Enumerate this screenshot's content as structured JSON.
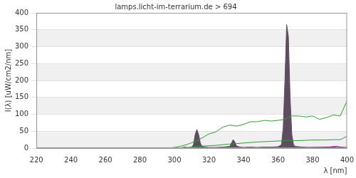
{
  "chart_data": {
    "type": "line",
    "title": "lamps.licht-im-terrarium.de > 694",
    "x_label": "λ [nm]",
    "y_label": "I(λ) [uW/cm2/nm]",
    "xlim": [
      220,
      400
    ],
    "xticks": [
      220,
      240,
      260,
      280,
      300,
      320,
      340,
      360,
      380,
      400
    ],
    "ylim": [
      0,
      400
    ],
    "yticks": [
      0,
      50,
      100,
      150,
      200,
      250,
      300,
      350,
      400
    ],
    "grid": true,
    "series": [
      {
        "type": "area",
        "color": "#5e4d60",
        "x": [
          296,
          300,
          304,
          306,
          308,
          310,
          311,
          312,
          313,
          314,
          315,
          316,
          318,
          320,
          324,
          328,
          332,
          333,
          334,
          335,
          336,
          338,
          340,
          344,
          348,
          352,
          356,
          360,
          362,
          363,
          364,
          365,
          366,
          367,
          368,
          369,
          370,
          374,
          378,
          382,
          386,
          390,
          392,
          394,
          398,
          400
        ],
        "values": [
          0,
          0.5,
          1,
          3,
          1,
          3,
          10,
          40,
          55,
          40,
          15,
          5,
          3,
          2,
          2,
          3,
          5,
          15,
          25,
          18,
          6,
          3,
          2,
          3,
          2,
          3,
          3,
          4,
          10,
          60,
          200,
          365,
          330,
          150,
          40,
          10,
          5,
          3,
          2,
          2,
          2,
          3,
          4,
          2,
          2,
          2
        ]
      },
      {
        "type": "line",
        "color": "#2e9e2e",
        "x": [
          296,
          300,
          304,
          308,
          312,
          316,
          320,
          324,
          328,
          332,
          336,
          340,
          344,
          348,
          352,
          356,
          360,
          364,
          368,
          372,
          376,
          380,
          384,
          388,
          392,
          396,
          400
        ],
        "values": [
          0,
          2,
          6,
          12,
          20,
          30,
          42,
          48,
          62,
          68,
          65,
          70,
          78,
          78,
          82,
          80,
          82,
          85,
          95,
          95,
          92,
          95,
          85,
          90,
          98,
          95,
          140
        ]
      },
      {
        "type": "line",
        "color": "#2e9e2e",
        "x": [
          300,
          308,
          316,
          324,
          332,
          340,
          348,
          356,
          364,
          372,
          380,
          388,
          392,
          396,
          400
        ],
        "values": [
          0,
          2,
          6,
          8,
          12,
          15,
          18,
          20,
          22,
          22,
          24,
          24,
          25,
          25,
          35
        ]
      },
      {
        "type": "line",
        "color": "#880088",
        "x": [
          370,
          380,
          390,
          394,
          396,
          400
        ],
        "values": [
          0,
          2,
          3,
          5,
          3,
          1
        ]
      }
    ]
  }
}
